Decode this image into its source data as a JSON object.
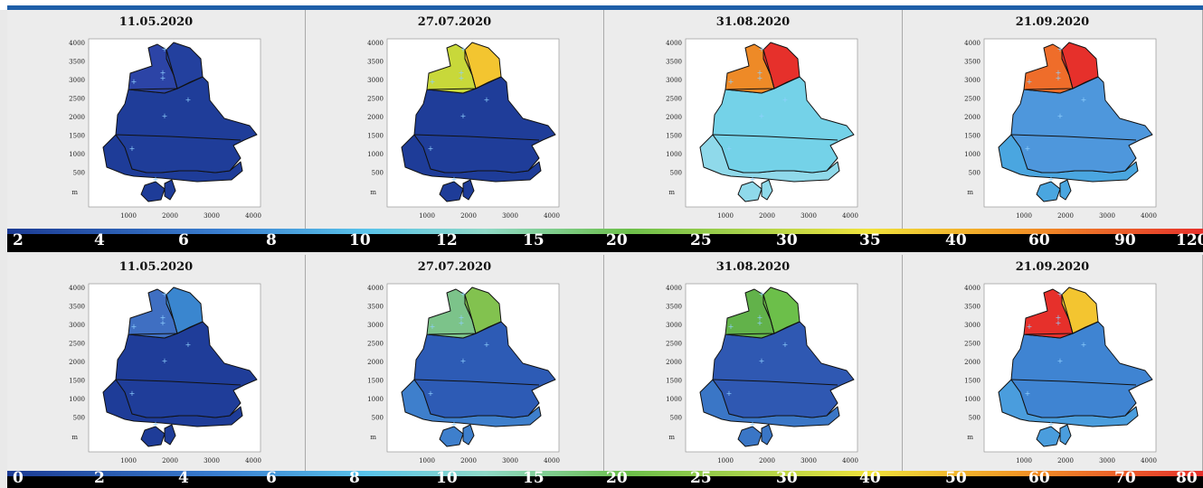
{
  "row1": {
    "dates": [
      "11.05.2020",
      "27.07.2020",
      "31.08.2020",
      "21.09.2020"
    ],
    "scale": [
      "2",
      "4",
      "6",
      "8",
      "10",
      "12",
      "15",
      "20",
      "25",
      "30",
      "35",
      "40",
      "60",
      "90",
      "120"
    ]
  },
  "row2": {
    "dates": [
      "11.05.2020",
      "27.07.2020",
      "31.08.2020",
      "21.09.2020"
    ],
    "scale": [
      "0",
      "2",
      "4",
      "6",
      "8",
      "10",
      "15",
      "20",
      "25",
      "30",
      "40",
      "50",
      "60",
      "70",
      "80"
    ]
  },
  "axis": {
    "y_ticks": [
      "4000",
      "3500",
      "3000",
      "2500",
      "2000",
      "1500",
      "1000",
      "500"
    ],
    "x_ticks": [
      "1000",
      "2000",
      "3000",
      "4000"
    ],
    "unit": "m"
  },
  "colors": {
    "deep_blue": "#1b3a93",
    "mid_blue": "#3a7fd0",
    "light_blue": "#59c3ea",
    "green": "#6cbf4a",
    "yellow": "#f0e23a",
    "orange": "#f29a25",
    "red": "#e6302b"
  },
  "panel_fills": [
    {
      "north": "#2c44a6",
      "northeast": "#23409e",
      "south": "#1f3d99",
      "basin": "#1e3c98"
    },
    {
      "north": "#c8d83a",
      "northeast": "#f3c530",
      "south": "#1f3d99",
      "basin": "#1e3c98"
    },
    {
      "north": "#ee8a27",
      "northeast": "#e6302b",
      "south": "#74d2e8",
      "basin": "#8fd9ea"
    },
    {
      "north": "#ef6d2a",
      "northeast": "#e6302b",
      "south": "#4e97dc",
      "basin": "#4aa6e0"
    },
    {
      "north": "#3f6fc2",
      "northeast": "#3a86cf",
      "south": "#1f3d99",
      "basin": "#1e3c98"
    },
    {
      "north": "#7cc38a",
      "northeast": "#82c24f",
      "south": "#2d5bb5",
      "basin": "#3e7fcc"
    },
    {
      "north": "#62b24a",
      "northeast": "#6cbf4a",
      "south": "#2f58b2",
      "basin": "#3a76c6"
    },
    {
      "north": "#e6302b",
      "northeast": "#f3c530",
      "south": "#3f84d2",
      "basin": "#4a9ddd"
    }
  ]
}
